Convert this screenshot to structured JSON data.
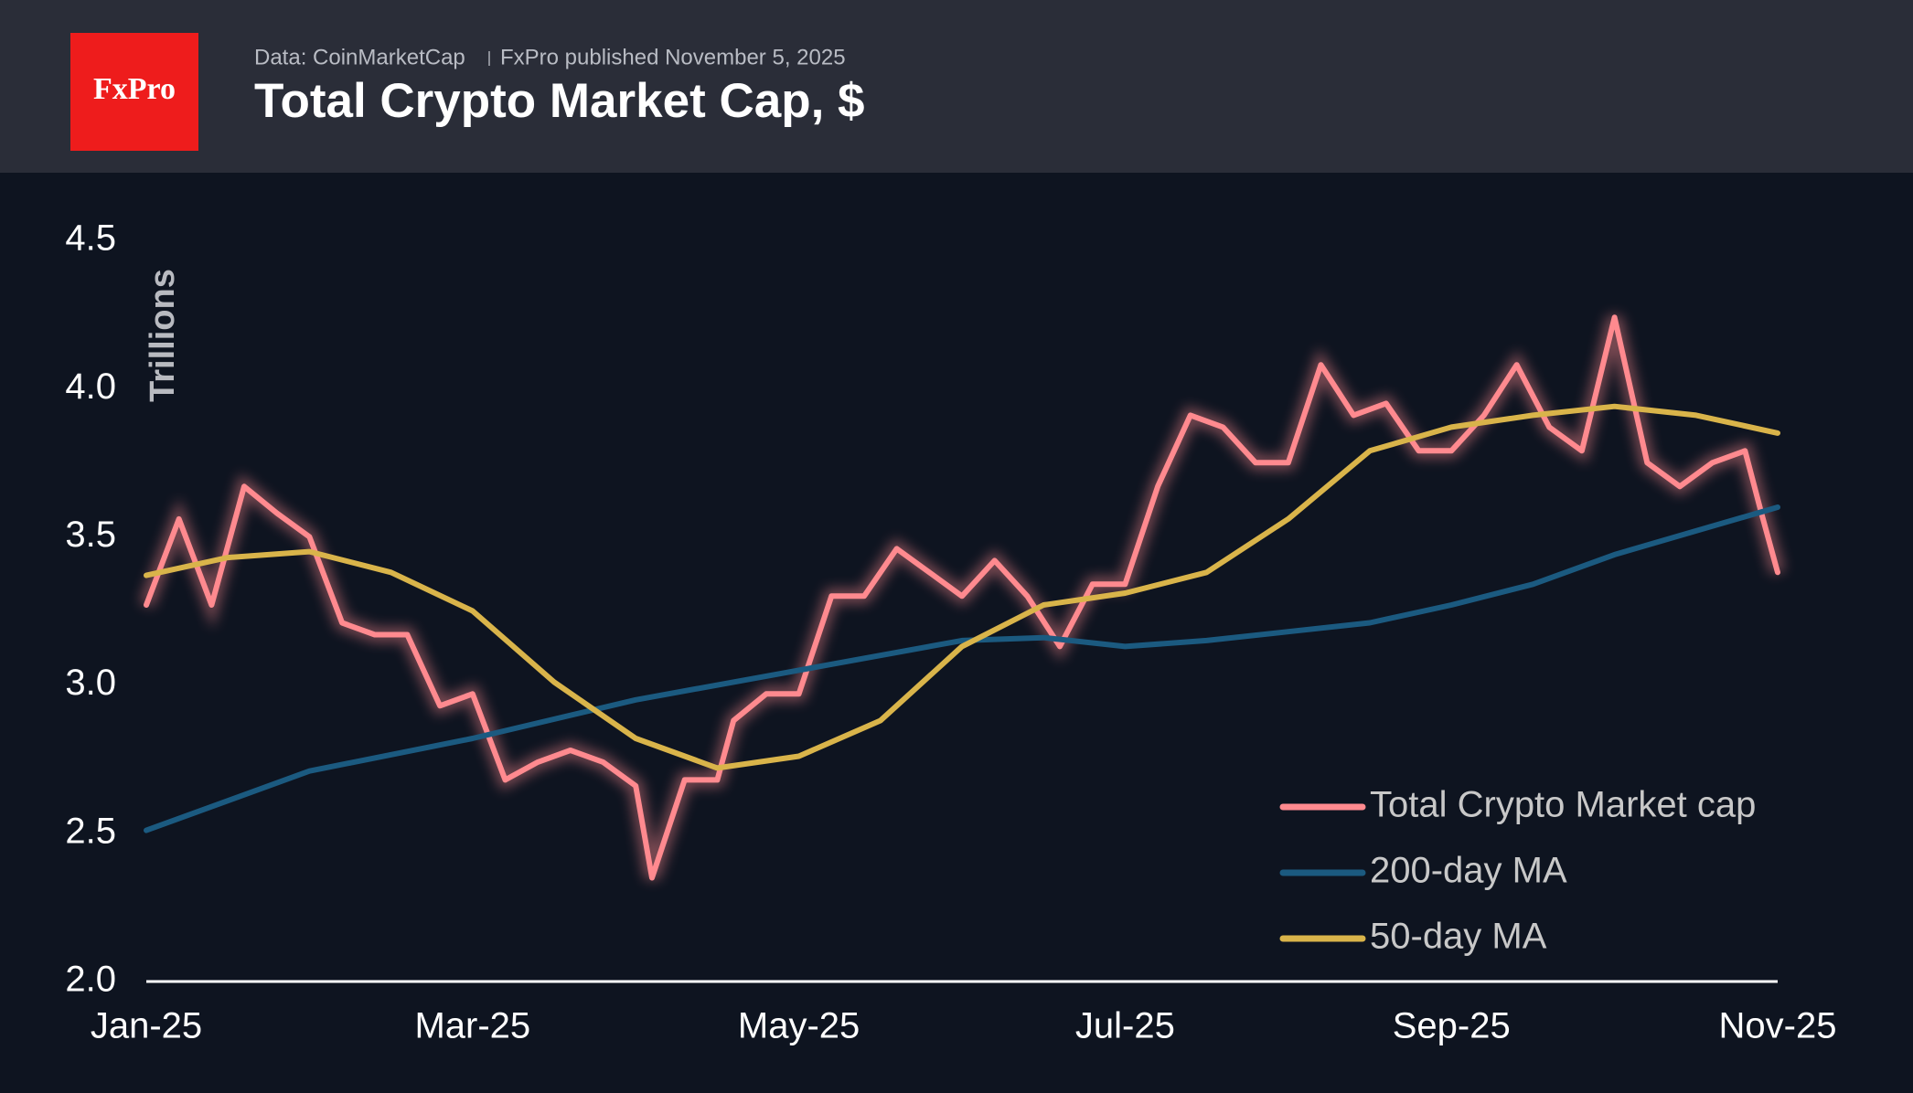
{
  "header": {
    "logo": "FxPro",
    "source": "Data: CoinMarketCap",
    "published": "FxPro published November 5, 2025"
  },
  "chart_data": {
    "type": "line",
    "title": "Total Crypto Market Cap, $",
    "y_label": "Trillions",
    "xlim": [
      0,
      10
    ],
    "xticks": [
      {
        "value": 0,
        "label": "Jan-25"
      },
      {
        "value": 2,
        "label": "Mar-25"
      },
      {
        "value": 4,
        "label": "May-25"
      },
      {
        "value": 6,
        "label": "Jul-25"
      },
      {
        "value": 8,
        "label": "Sep-25"
      },
      {
        "value": 10,
        "label": "Nov-25"
      }
    ],
    "ylim": [
      2,
      4.5
    ],
    "yticks": [
      {
        "value": 2,
        "label": "2.0"
      },
      2.5,
      {
        "value": 3,
        "label": "3.0"
      },
      3.5,
      {
        "value": 4,
        "label": "4.0"
      },
      4.5
    ],
    "grid": false,
    "legend": "lower right",
    "series": [
      {
        "name": "Total Crypto Market cap",
        "color": "#ff8a8f",
        "x": [
          0,
          0.2,
          0.4,
          0.6,
          0.8,
          1,
          1.2,
          1.4,
          1.6,
          1.8,
          2,
          2.2,
          2.4,
          2.6,
          2.8,
          3,
          3.1,
          3.3,
          3.5,
          3.6,
          3.8,
          4,
          4.2,
          4.4,
          4.6,
          4.8,
          5,
          5.2,
          5.4,
          5.6,
          5.8,
          6,
          6.2,
          6.4,
          6.6,
          6.8,
          7,
          7.2,
          7.4,
          7.6,
          7.8,
          8,
          8.2,
          8.4,
          8.6,
          8.8,
          9,
          9.2,
          9.4,
          9.6,
          9.8,
          9.9,
          10
        ],
        "values": [
          3.27,
          3.56,
          3.27,
          3.67,
          3.58,
          3.5,
          3.21,
          3.17,
          3.17,
          2.93,
          2.97,
          2.68,
          2.74,
          2.78,
          2.74,
          2.66,
          2.35,
          2.68,
          2.68,
          2.88,
          2.97,
          2.97,
          3.3,
          3.3,
          3.46,
          3.38,
          3.3,
          3.42,
          3.3,
          3.13,
          3.34,
          3.34,
          3.67,
          3.91,
          3.87,
          3.75,
          3.75,
          4.08,
          3.91,
          3.95,
          3.79,
          3.79,
          3.91,
          4.08,
          3.87,
          3.79,
          4.24,
          3.75,
          3.67,
          3.75,
          3.79,
          3.58,
          3.38
        ]
      },
      {
        "name": "200-day MA",
        "color": "#1b5a80",
        "x": [
          0,
          1,
          2,
          3,
          4,
          5,
          5.5,
          6,
          6.5,
          7,
          7.5,
          8,
          8.5,
          9,
          9.5,
          10
        ],
        "values": [
          2.51,
          2.71,
          2.82,
          2.95,
          3.05,
          3.15,
          3.16,
          3.13,
          3.15,
          3.18,
          3.21,
          3.27,
          3.34,
          3.44,
          3.52,
          3.6
        ]
      },
      {
        "name": "50-day MA",
        "color": "#d9b44a",
        "x": [
          0,
          0.5,
          1,
          1.5,
          2,
          2.5,
          3,
          3.5,
          4,
          4.5,
          5,
          5.5,
          6,
          6.5,
          7,
          7.5,
          8,
          8.5,
          9,
          9.5,
          10
        ],
        "values": [
          3.37,
          3.43,
          3.45,
          3.38,
          3.25,
          3.01,
          2.82,
          2.72,
          2.76,
          2.88,
          3.13,
          3.27,
          3.31,
          3.38,
          3.56,
          3.79,
          3.87,
          3.91,
          3.94,
          3.91,
          3.85
        ]
      }
    ]
  }
}
